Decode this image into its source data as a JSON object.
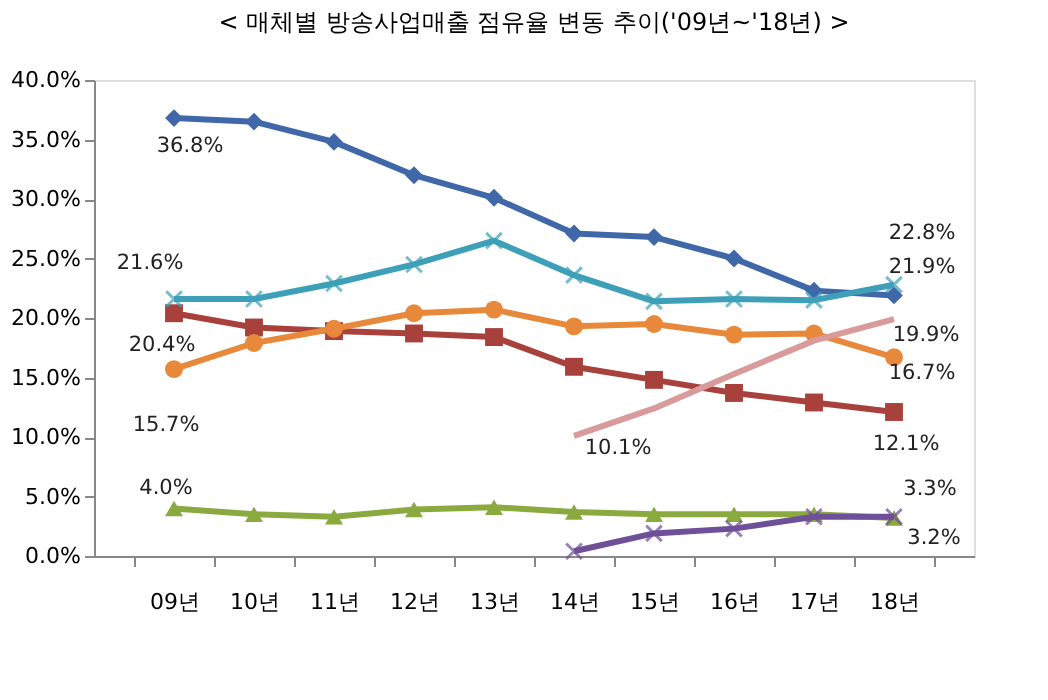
{
  "chart_data": {
    "type": "line",
    "title": "< 매체별 방송사업매출 점유율 변동 추이('09년~'18년) >",
    "categories": [
      "09년",
      "10년",
      "11년",
      "12년",
      "13년",
      "14년",
      "15년",
      "16년",
      "17년",
      "18년"
    ],
    "series": [
      {
        "color": "#4068a8",
        "marker": "diamond",
        "values": [
          36.8,
          36.5,
          34.8,
          32.0,
          30.1,
          27.1,
          26.8,
          25.0,
          22.3,
          21.9
        ],
        "value_labels": [
          "36.8%",
          null,
          null,
          null,
          null,
          null,
          null,
          null,
          null,
          "21.9%"
        ]
      },
      {
        "color": "#a8403c",
        "marker": "square",
        "values": [
          20.4,
          19.2,
          18.9,
          18.7,
          18.4,
          15.9,
          14.8,
          13.7,
          12.9,
          12.1
        ],
        "value_labels": [
          "20.4%",
          null,
          null,
          null,
          null,
          null,
          null,
          null,
          null,
          "12.1%"
        ]
      },
      {
        "color": "#8aaa40",
        "marker": "triangle",
        "values": [
          4.0,
          3.5,
          3.3,
          3.9,
          4.1,
          3.7,
          3.5,
          3.5,
          3.5,
          3.2
        ],
        "value_labels": [
          "4.0%",
          null,
          null,
          null,
          null,
          null,
          null,
          null,
          null,
          "3.2%"
        ]
      },
      {
        "color": "#3da0b8",
        "marker": "cross",
        "values": [
          21.6,
          21.6,
          22.9,
          24.5,
          26.5,
          23.6,
          21.4,
          21.6,
          21.5,
          22.8
        ],
        "value_labels": [
          "21.6%",
          null,
          null,
          null,
          null,
          null,
          null,
          null,
          null,
          "22.8%"
        ]
      },
      {
        "color": "#e8883a",
        "marker": "circle",
        "values": [
          15.7,
          17.9,
          19.1,
          20.4,
          20.7,
          19.3,
          19.5,
          18.6,
          18.7,
          16.7
        ],
        "value_labels": [
          "15.7%",
          null,
          null,
          null,
          null,
          null,
          null,
          null,
          null,
          "16.7%"
        ]
      },
      {
        "color": "#6f4f98",
        "marker": "cross",
        "values": [
          null,
          null,
          null,
          null,
          null,
          0.4,
          1.9,
          2.3,
          3.3,
          3.3
        ],
        "value_labels": [
          null,
          null,
          null,
          null,
          null,
          null,
          null,
          null,
          null,
          "3.3%"
        ]
      },
      {
        "color": "#d89a9a",
        "marker": "none",
        "values": [
          null,
          null,
          null,
          null,
          null,
          10.1,
          12.4,
          15.3,
          18.1,
          19.9
        ],
        "value_labels": [
          null,
          null,
          null,
          null,
          null,
          "10.1%",
          null,
          null,
          null,
          "19.9%"
        ]
      }
    ],
    "ylim": [
      0,
      40
    ],
    "yticks": [
      {
        "value": 0,
        "label": "0.0%"
      },
      {
        "value": 5,
        "label": "5.0%"
      },
      {
        "value": 10,
        "label": "10.0%"
      },
      {
        "value": 15,
        "label": "15.0%"
      },
      {
        "value": 20,
        "label": "20.0%"
      },
      {
        "value": 25,
        "label": "25.0%"
      },
      {
        "value": 30,
        "label": "30.0%"
      },
      {
        "value": 35,
        "label": "35.0%"
      },
      {
        "value": 40,
        "label": "40.0%"
      }
    ],
    "grid": false
  }
}
